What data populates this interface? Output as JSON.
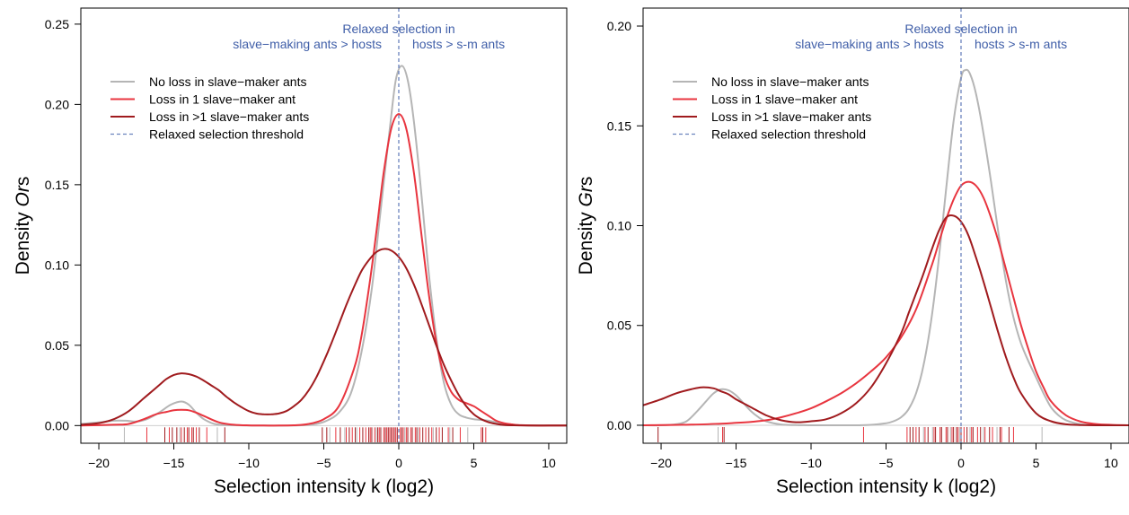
{
  "chart_data": [
    {
      "type": "line",
      "title": "",
      "xlabel": "Selection intensity k (log2)",
      "ylabel_prefix": "Density ",
      "ylabel_italic": "Or",
      "ylabel_suffix": "s",
      "xlim": [
        -21.2,
        11.2
      ],
      "ylim": [
        -0.011,
        0.26
      ],
      "xticks": [
        -20,
        -15,
        -10,
        -5,
        0,
        5,
        10
      ],
      "yticks": [
        0.0,
        0.05,
        0.1,
        0.15,
        0.2,
        0.25
      ],
      "ytick_labels": [
        "0.00",
        "0.05",
        "0.10",
        "0.15",
        "0.20",
        "0.25"
      ],
      "threshold": 0,
      "annotation": {
        "title": "Relaxed selection in",
        "left": "slave−making ants > hosts",
        "right": "hosts > s-m ants"
      },
      "legend": {
        "position": "top-left",
        "entries": [
          {
            "label": "No loss in slave−maker ants",
            "color": "#b5b5b5",
            "style": "solid"
          },
          {
            "label": "Loss in 1 slave−maker ant",
            "color": "#e8353f",
            "style": "solid"
          },
          {
            "label": "Loss in >1 slave−maker ants",
            "color": "#a01b1e",
            "style": "solid"
          },
          {
            "label": "Relaxed selection threshold",
            "color": "#6c84be",
            "style": "dashed"
          }
        ]
      },
      "series": [
        {
          "color": "#b5b5b5",
          "x": [
            -21.2,
            -20,
            -19,
            -18.2,
            -17.5,
            -16.8,
            -16,
            -15.2,
            -14.5,
            -14,
            -13.5,
            -13,
            -12.3,
            -11.5,
            -10.5,
            -9.5,
            -8.5,
            -7.5,
            -6.5,
            -5.5,
            -4.8,
            -4,
            -3.2,
            -2.5,
            -1.8,
            -1.2,
            -0.6,
            -0.2,
            0.2,
            0.6,
            1,
            1.5,
            2,
            2.5,
            3,
            3.5,
            4,
            4.5,
            5,
            5.5,
            6,
            6.5,
            7,
            7.5,
            8.5,
            9.5,
            11.2
          ],
          "y": [
            0.001,
            0.002,
            0.003,
            0.003,
            0.0025,
            0.004,
            0.008,
            0.013,
            0.015,
            0.013,
            0.008,
            0.004,
            0.001,
            0.0003,
            0.0001,
            0,
            0,
            0,
            0.0002,
            0.001,
            0.003,
            0.008,
            0.02,
            0.045,
            0.085,
            0.135,
            0.185,
            0.215,
            0.224,
            0.215,
            0.19,
            0.145,
            0.095,
            0.055,
            0.027,
            0.013,
            0.007,
            0.005,
            0.004,
            0.0035,
            0.003,
            0.002,
            0.001,
            0.0005,
            0.0001,
            0,
            0
          ]
        },
        {
          "color": "#e8353f",
          "x": [
            -21.2,
            -19,
            -18,
            -17,
            -16.2,
            -15.5,
            -15,
            -14.5,
            -14,
            -13.5,
            -13,
            -12,
            -11,
            -10,
            -9,
            -8,
            -7,
            -6,
            -5,
            -4,
            -3,
            -2.5,
            -2,
            -1.5,
            -1,
            -0.5,
            0,
            0.5,
            1,
            1.5,
            2,
            2.5,
            3,
            3.5,
            4,
            4.5,
            5,
            5.5,
            6,
            6.5,
            7,
            7.5,
            8,
            9,
            10,
            11.2
          ],
          "y": [
            0,
            0.0005,
            0.001,
            0.004,
            0.007,
            0.0085,
            0.0095,
            0.0098,
            0.0095,
            0.008,
            0.006,
            0.002,
            0.0005,
            0.0001,
            0,
            0,
            0.0002,
            0.001,
            0.004,
            0.012,
            0.035,
            0.055,
            0.085,
            0.12,
            0.158,
            0.185,
            0.194,
            0.185,
            0.158,
            0.12,
            0.082,
            0.052,
            0.032,
            0.021,
            0.016,
            0.014,
            0.012,
            0.009,
            0.006,
            0.003,
            0.0015,
            0.0008,
            0.0003,
            0,
            0,
            0
          ]
        },
        {
          "color": "#a01b1e",
          "x": [
            -21.2,
            -20,
            -19,
            -18,
            -17,
            -16,
            -15.5,
            -15,
            -14.5,
            -14,
            -13.5,
            -13,
            -12.5,
            -12,
            -11.5,
            -11,
            -10.5,
            -10,
            -9.5,
            -9,
            -8.5,
            -8,
            -7.5,
            -7,
            -6.5,
            -6,
            -5.5,
            -5,
            -4.5,
            -4,
            -3.5,
            -3,
            -2.5,
            -2,
            -1.5,
            -1,
            -0.5,
            0,
            0.5,
            1,
            1.5,
            2,
            2.5,
            3,
            3.5,
            4,
            4.5,
            5,
            5.5,
            6,
            6.5,
            7,
            7.5,
            8,
            9,
            10,
            11.2
          ],
          "y": [
            0.0005,
            0.0015,
            0.004,
            0.009,
            0.017,
            0.025,
            0.029,
            0.0315,
            0.0325,
            0.032,
            0.0305,
            0.028,
            0.025,
            0.022,
            0.018,
            0.0145,
            0.0115,
            0.009,
            0.0075,
            0.007,
            0.007,
            0.0075,
            0.009,
            0.012,
            0.016,
            0.022,
            0.03,
            0.04,
            0.051,
            0.063,
            0.075,
            0.086,
            0.096,
            0.103,
            0.108,
            0.11,
            0.109,
            0.105,
            0.098,
            0.088,
            0.076,
            0.063,
            0.05,
            0.038,
            0.028,
            0.019,
            0.012,
            0.007,
            0.004,
            0.002,
            0.001,
            0.0004,
            0.0002,
            0.0001,
            0,
            0,
            0
          ]
        }
      ],
      "rug": [
        {
          "color": "#b5b5b5",
          "x": [
            -18.3,
            -14.6,
            -12.1,
            -4.6,
            -3.6,
            -2.8,
            -1.5,
            -0.6,
            0.4,
            1.3,
            2.3,
            3.4,
            4.6
          ]
        },
        {
          "color": "#e8353f",
          "x": [
            -16.8,
            -15.3,
            -14.5,
            -14.1,
            -13.8,
            -13.5,
            -12.8,
            -4.2,
            -3.5,
            -3.1,
            -2.6,
            -2.2,
            -1.9,
            -1.6,
            -1.3,
            -1.0,
            -0.8,
            -0.6,
            -0.4,
            -0.2,
            0.1,
            0.3,
            0.5,
            0.8,
            1.1,
            1.4,
            1.8,
            2.2,
            2.7,
            3.3,
            4.1,
            5.5,
            5.8
          ]
        },
        {
          "color": "#a01b1e",
          "x": [
            -15.6,
            -15.1,
            -14.8,
            -14.3,
            -14.0,
            -13.7,
            -13.3,
            -11.6,
            -5.1,
            -4.8,
            -3.9,
            -3.3,
            -2.9,
            -2.4,
            -2.0,
            -1.8,
            -1.4,
            -1.2,
            -0.9,
            -0.7,
            -0.5,
            -0.3,
            -0.1,
            0.2,
            0.6,
            0.9,
            1.2,
            1.6,
            2.0,
            2.5,
            2.9,
            3.6,
            5.6
          ]
        }
      ]
    },
    {
      "type": "line",
      "title": "",
      "xlabel": "Selection intensity k (log2)",
      "ylabel_prefix": "Density ",
      "ylabel_italic": "Gr",
      "ylabel_suffix": "s",
      "xlim": [
        -21.2,
        11.2
      ],
      "ylim": [
        -0.009,
        0.209
      ],
      "xticks": [
        -20,
        -15,
        -10,
        -5,
        0,
        5,
        10
      ],
      "yticks": [
        0.0,
        0.05,
        0.1,
        0.15,
        0.2
      ],
      "ytick_labels": [
        "0.00",
        "0.05",
        "0.10",
        "0.15",
        "0.20"
      ],
      "threshold": 0,
      "annotation": {
        "title": "Relaxed selection in",
        "left": "slave−making ants > hosts",
        "right": "hosts > s-m ants"
      },
      "legend": {
        "position": "top-left",
        "entries": [
          {
            "label": "No loss in slave−maker ants",
            "color": "#b5b5b5",
            "style": "solid"
          },
          {
            "label": "Loss in 1 slave−maker ant",
            "color": "#e8353f",
            "style": "solid"
          },
          {
            "label": "Loss in >1 slave−maker ants",
            "color": "#a01b1e",
            "style": "solid"
          },
          {
            "label": "Relaxed selection threshold",
            "color": "#6c84be",
            "style": "dashed"
          }
        ]
      },
      "series": [
        {
          "color": "#b5b5b5",
          "x": [
            -21.2,
            -20,
            -19,
            -18.3,
            -17.6,
            -17,
            -16.5,
            -16,
            -15.5,
            -15,
            -14.5,
            -14,
            -13.5,
            -13,
            -12,
            -11,
            -10,
            -9,
            -8,
            -7,
            -6,
            -5,
            -4.5,
            -4,
            -3.5,
            -3,
            -2.5,
            -2,
            -1.5,
            -1,
            -0.5,
            0,
            0.3,
            0.6,
            1,
            1.5,
            2,
            2.5,
            3,
            3.5,
            4,
            4.5,
            5,
            5.5,
            6,
            6.5,
            7,
            8,
            9,
            10,
            11.2
          ],
          "y": [
            0,
            0,
            0.0005,
            0.002,
            0.007,
            0.012,
            0.016,
            0.018,
            0.0175,
            0.015,
            0.011,
            0.007,
            0.004,
            0.002,
            0.0004,
            0.0001,
            0,
            0,
            0,
            0,
            0.0002,
            0.001,
            0.002,
            0.004,
            0.008,
            0.016,
            0.03,
            0.052,
            0.082,
            0.118,
            0.152,
            0.174,
            0.178,
            0.176,
            0.166,
            0.146,
            0.122,
            0.096,
            0.072,
            0.054,
            0.041,
            0.032,
            0.024,
            0.016,
            0.009,
            0.005,
            0.0025,
            0.0005,
            0.0001,
            0,
            0
          ]
        },
        {
          "color": "#e8353f",
          "x": [
            -21.2,
            -20,
            -18,
            -16,
            -15,
            -14,
            -13,
            -12,
            -11,
            -10,
            -9,
            -8,
            -7,
            -6,
            -5,
            -4,
            -3,
            -2,
            -1.5,
            -1,
            -0.5,
            0,
            0.5,
            1,
            1.5,
            2,
            2.5,
            3,
            3.5,
            4,
            4.5,
            5,
            5.5,
            6,
            7,
            8,
            9,
            10,
            11.2
          ],
          "y": [
            0,
            0.0001,
            0.0003,
            0.0008,
            0.0012,
            0.0017,
            0.0025,
            0.004,
            0.006,
            0.0085,
            0.012,
            0.016,
            0.021,
            0.027,
            0.034,
            0.044,
            0.058,
            0.079,
            0.091,
            0.103,
            0.113,
            0.12,
            0.122,
            0.12,
            0.114,
            0.104,
            0.092,
            0.078,
            0.064,
            0.05,
            0.038,
            0.027,
            0.019,
            0.012,
            0.005,
            0.0018,
            0.0006,
            0.0002,
            0
          ]
        },
        {
          "color": "#a01b1e",
          "x": [
            -21.2,
            -20,
            -19,
            -18,
            -17.3,
            -16.5,
            -16,
            -15.5,
            -15,
            -14,
            -13,
            -12,
            -11,
            -10,
            -9,
            -8,
            -7,
            -6,
            -5,
            -4,
            -3.5,
            -3,
            -2.5,
            -2,
            -1.5,
            -1,
            -0.5,
            0,
            0.5,
            1,
            1.5,
            2,
            2.5,
            3,
            3.5,
            4,
            5,
            6,
            7,
            8,
            9,
            10,
            11.2
          ],
          "y": [
            0.01,
            0.013,
            0.016,
            0.018,
            0.019,
            0.0185,
            0.017,
            0.0155,
            0.013,
            0.009,
            0.005,
            0.0025,
            0.0015,
            0.002,
            0.003,
            0.006,
            0.011,
            0.019,
            0.031,
            0.046,
            0.056,
            0.066,
            0.076,
            0.087,
            0.097,
            0.104,
            0.105,
            0.102,
            0.095,
            0.084,
            0.072,
            0.059,
            0.046,
            0.034,
            0.024,
            0.016,
            0.006,
            0.002,
            0.0005,
            0.0001,
            0,
            0,
            0
          ]
        }
      ],
      "rug": [
        {
          "color": "#b5b5b5",
          "x": [
            -16.2,
            -2.5,
            -1.9,
            -1.3,
            -0.7,
            -0.1,
            0.6,
            1.5,
            2.4,
            5.4
          ]
        },
        {
          "color": "#e8353f",
          "x": [
            -15.9,
            -6.5,
            -3.6,
            -3.0,
            -2.4,
            -1.8,
            -1.4,
            -1.0,
            -0.6,
            -0.2,
            0.2,
            0.7,
            1.1,
            1.6,
            2.1,
            2.7,
            3.5
          ]
        },
        {
          "color": "#a01b1e",
          "x": [
            -20.2,
            -15.8,
            -3.4,
            -3.2,
            -2.8,
            -2.2,
            -1.7,
            -1.3,
            -0.9,
            -0.5,
            -0.3,
            0.0,
            0.4,
            0.8,
            1.3,
            1.9,
            2.6,
            3.2
          ]
        }
      ]
    }
  ]
}
